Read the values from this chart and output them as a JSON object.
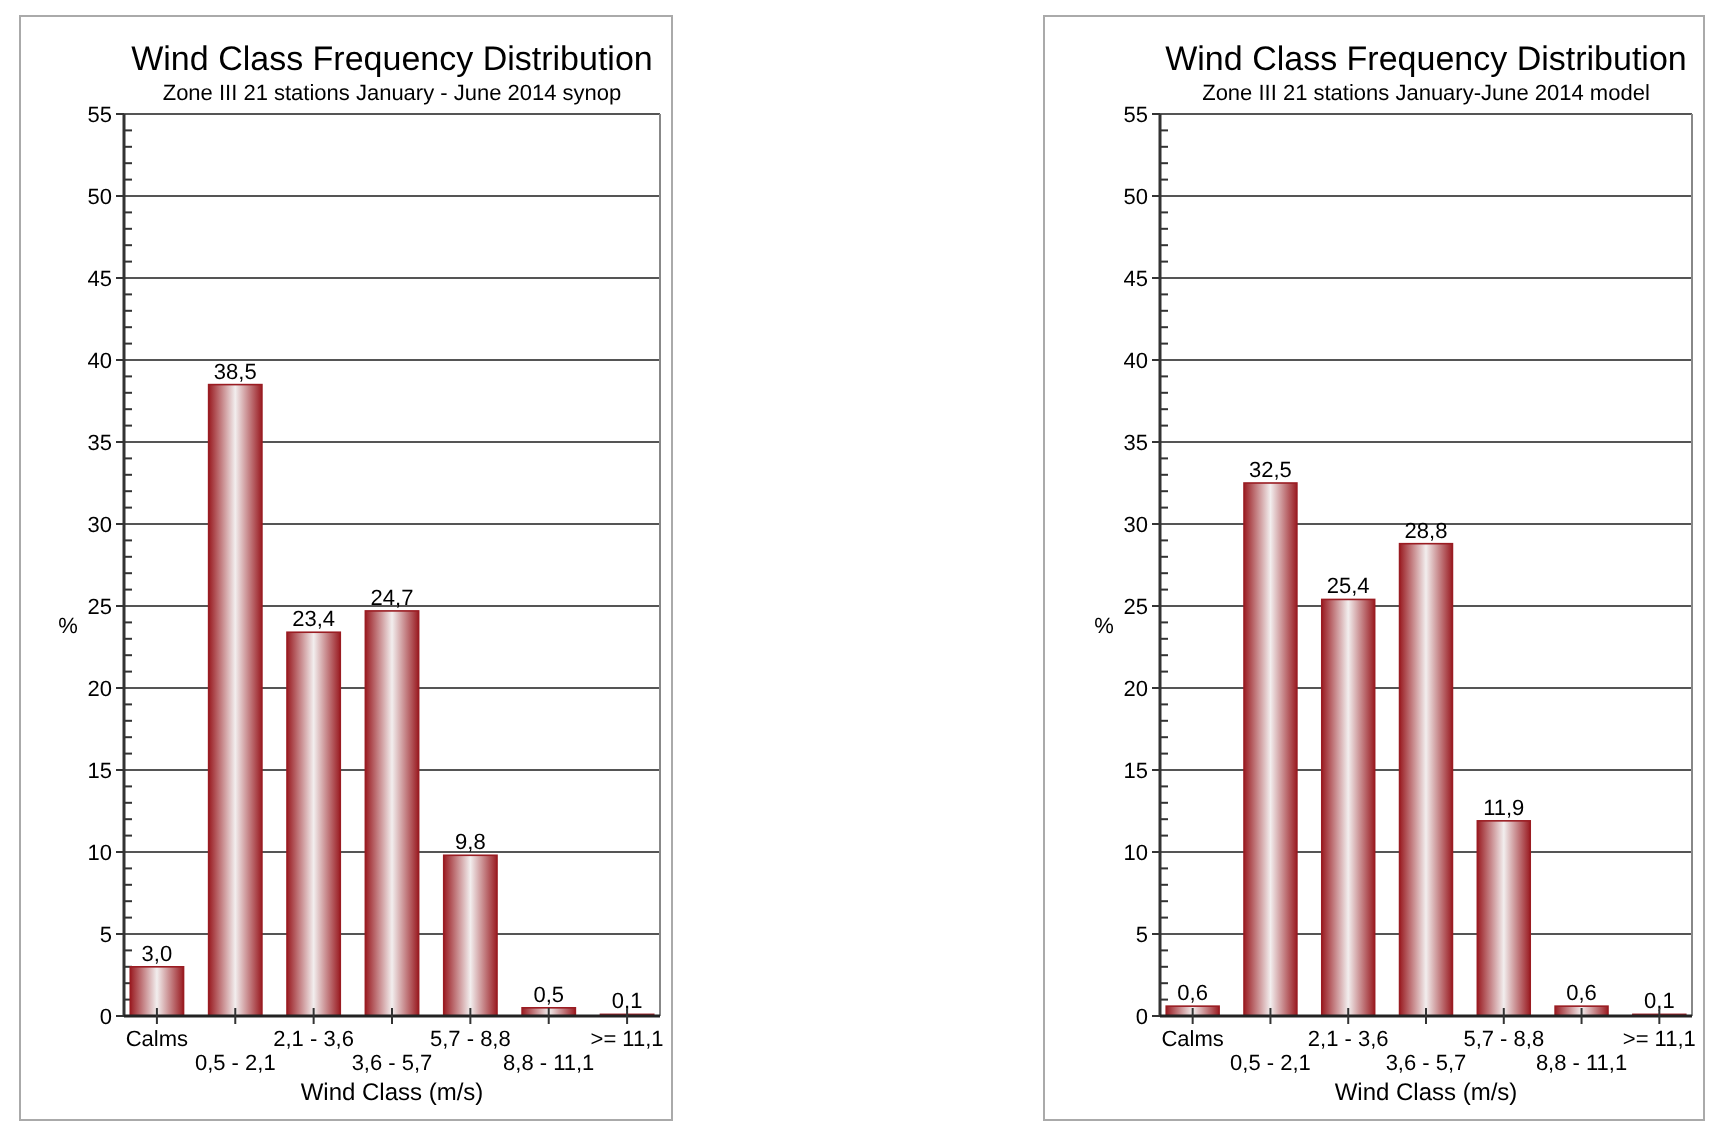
{
  "chart_data": [
    {
      "type": "bar",
      "title": "Wind Class Frequency Distribution",
      "subtitle": "Zone III 21 stations January - June 2014 synop",
      "xlabel": "Wind Class (m/s)",
      "ylabel": "%",
      "categories": [
        "Calms",
        "0,5 -  2,1",
        "2,1 -  3,6",
        "3,6 -  5,7",
        "5,7 -  8,8",
        "8,8 - 11,1",
        ">= 11,1"
      ],
      "values": [
        3.0,
        38.5,
        23.4,
        24.7,
        9.8,
        0.5,
        0.1
      ],
      "value_labels": [
        "3,0",
        "38,5",
        "23,4",
        "24,7",
        "9,8",
        "0,5",
        "0,1"
      ],
      "color": "#9a1c22",
      "ylim": [
        0,
        55
      ],
      "yticks": [
        0,
        5,
        10,
        15,
        20,
        25,
        30,
        35,
        40,
        45,
        50,
        55
      ],
      "grid": "y"
    },
    {
      "type": "bar",
      "title": "Wind Class Frequency Distribution",
      "subtitle": "Zone III 21 stations January-June 2014 model",
      "xlabel": "Wind Class (m/s)",
      "ylabel": "%",
      "categories": [
        "Calms",
        "0,5 -  2,1",
        "2,1 -  3,6",
        "3,6 -  5,7",
        "5,7 -  8,8",
        "8,8 - 11,1",
        ">= 11,1"
      ],
      "values": [
        0.6,
        32.5,
        25.4,
        28.8,
        11.9,
        0.6,
        0.1
      ],
      "value_labels": [
        "0,6",
        "32,5",
        "25,4",
        "28,8",
        "11,9",
        "0,6",
        "0,1"
      ],
      "color": "#9a1c22",
      "ylim": [
        0,
        55
      ],
      "yticks": [
        0,
        5,
        10,
        15,
        20,
        25,
        30,
        35,
        40,
        45,
        50,
        55
      ],
      "grid": "y"
    }
  ]
}
